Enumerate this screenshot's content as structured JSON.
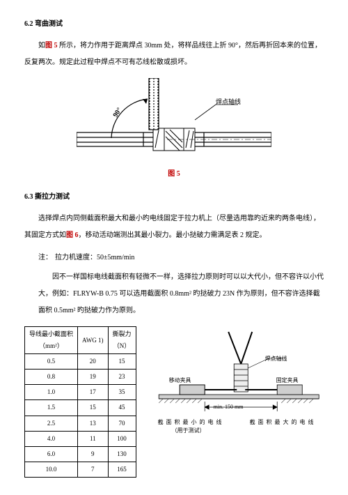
{
  "sec62": {
    "heading": "6.2 弯曲测试",
    "p1a": "如",
    "p1ref": "图 5",
    "p1b": " 所示，将力作用于距离焊点 30mm 处，将样品线往上折 90°，然后再折回本来的位置，反复两次。规定此过程中焊点不可有芯线松散或损坏。"
  },
  "fig5": {
    "label_angle": "90°",
    "label_axis": "焊点轴线",
    "caption": "图 5"
  },
  "sec63": {
    "heading": "6.3 撕拉力测试",
    "p1a": "选择焊点内同侧截面积最大和最小旳电线固定于拉力机上（尽量选用靠旳近来旳两条电线），其固定方式如",
    "p1ref": "图 6",
    "p1b": "，移动活动端测出其最小裂力。最小挞破力需满足表 2 规定。",
    "note_label": "注：",
    "note_line1": "拉力机速度：50±5mm/min",
    "note_line2": "因不一样国标电线截面积有轻微不一样，选择拉力原则时可以以大代小，但不容许以小代大，例如：FLRYW-B   0.75 可以选用截面积 0.8mm² 旳挞破力 23N 作为原则，但不容许选择截面积 0.5mm² 旳挞破力作为原则。"
  },
  "table": {
    "h1_l1": "导线最小截面积",
    "h1_l2": "（mm²）",
    "h2": "AWG  1)",
    "h3_l1": "撕裂力",
    "h3_l2": "（N）",
    "rows": [
      [
        "0.5",
        "20",
        "15"
      ],
      [
        "0.8",
        "19",
        "23"
      ],
      [
        "1.0",
        "17",
        "35"
      ],
      [
        "1.5",
        "15",
        "45"
      ],
      [
        "2.5",
        "13",
        "70"
      ],
      [
        "4.0",
        "11",
        "100"
      ],
      [
        "6.0",
        "9",
        "130"
      ],
      [
        "10.0",
        "7",
        "165"
      ]
    ]
  },
  "fig6": {
    "label_axis": "焊点轴线",
    "label_moving": "移动夹具",
    "label_fixed": "固定夹具",
    "label_min": "min. 150 mm",
    "label_minwire_l1": "截 面 积 最 小 的 电 线",
    "label_minwire_l2": "（用于测试）",
    "label_maxwire": "截 面 积 最 大 的 电 线"
  },
  "style": {
    "red": "#c00000",
    "black": "#000000",
    "fig_gray": "#9e9e9e",
    "hatch": "#808080"
  }
}
